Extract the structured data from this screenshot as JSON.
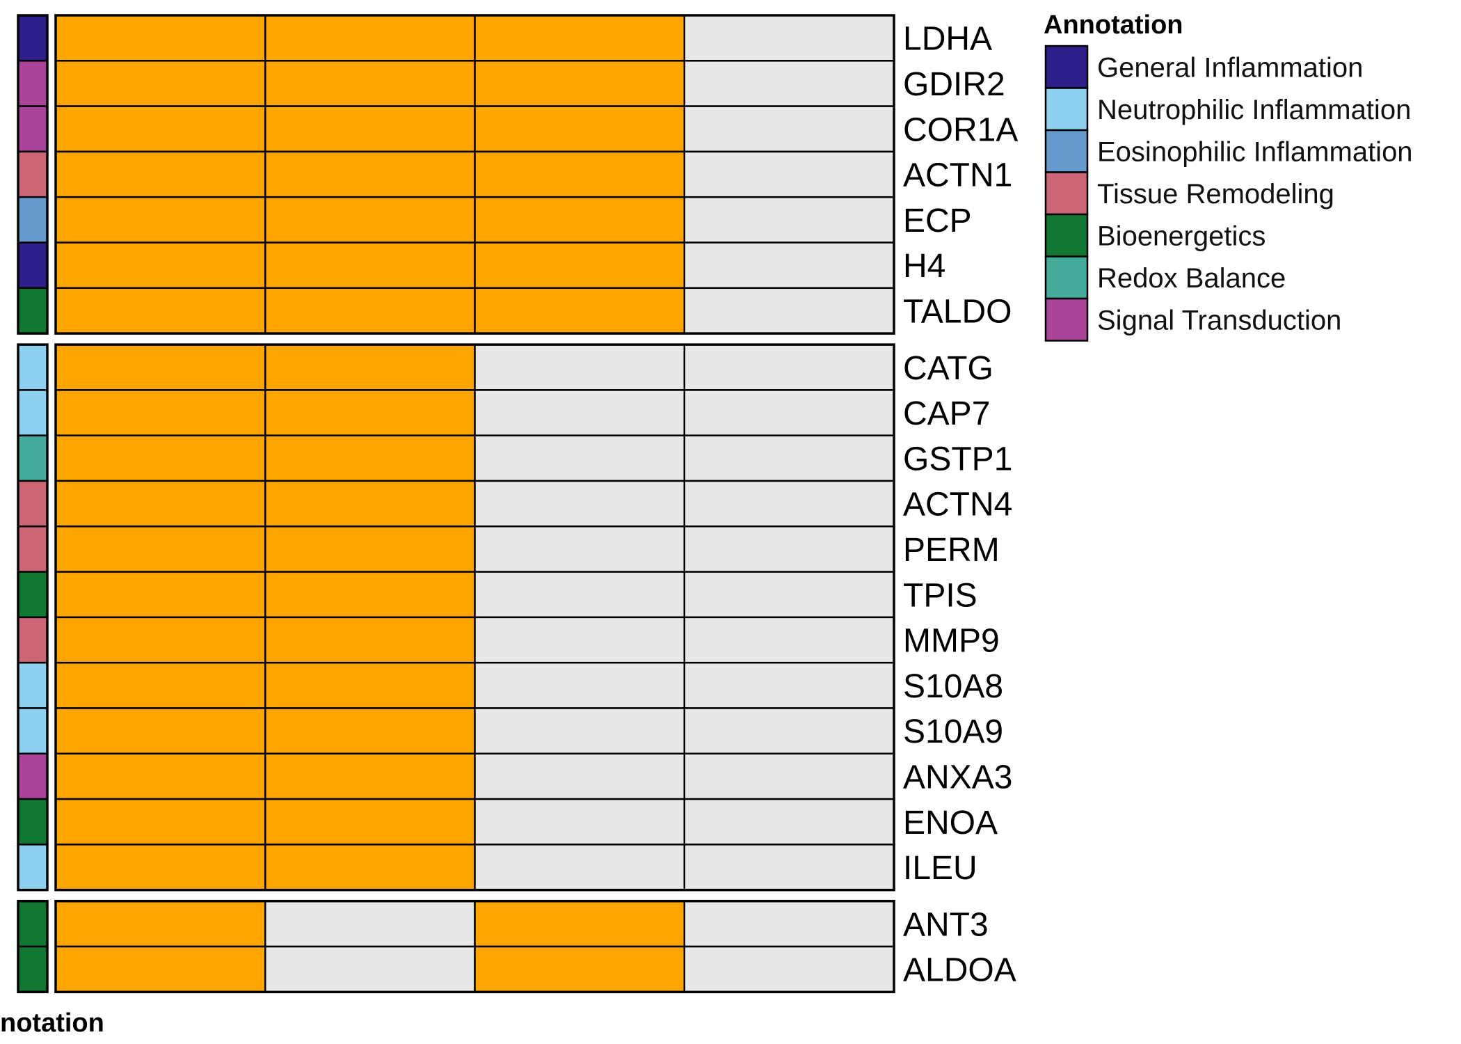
{
  "chart_data": {
    "type": "heatmap",
    "columns": 4,
    "colors": {
      "present": "#FFA500",
      "absent": "#E8E8E8",
      "border": "#000000"
    },
    "groups": [
      {
        "rows": [
          {
            "gene": "LDHA",
            "annotation": "General Inflammation",
            "values": [
              1,
              1,
              1,
              0
            ]
          },
          {
            "gene": "GDIR2",
            "annotation": "Signal Transduction",
            "values": [
              1,
              1,
              1,
              0
            ]
          },
          {
            "gene": "COR1A",
            "annotation": "Signal Transduction",
            "values": [
              1,
              1,
              1,
              0
            ]
          },
          {
            "gene": "ACTN1",
            "annotation": "Tissue Remodeling",
            "values": [
              1,
              1,
              1,
              0
            ]
          },
          {
            "gene": "ECP",
            "annotation": "Eosinophilic Inflammation",
            "values": [
              1,
              1,
              1,
              0
            ]
          },
          {
            "gene": "H4",
            "annotation": "General Inflammation",
            "values": [
              1,
              1,
              1,
              0
            ]
          },
          {
            "gene": "TALDO",
            "annotation": "Bioenergetics",
            "values": [
              1,
              1,
              1,
              0
            ]
          }
        ]
      },
      {
        "rows": [
          {
            "gene": "CATG",
            "annotation": "Neutrophilic Inflammation",
            "values": [
              1,
              1,
              0,
              0
            ]
          },
          {
            "gene": "CAP7",
            "annotation": "Neutrophilic Inflammation",
            "values": [
              1,
              1,
              0,
              0
            ]
          },
          {
            "gene": "GSTP1",
            "annotation": "Redox Balance",
            "values": [
              1,
              1,
              0,
              0
            ]
          },
          {
            "gene": "ACTN4",
            "annotation": "Tissue Remodeling",
            "values": [
              1,
              1,
              0,
              0
            ]
          },
          {
            "gene": "PERM",
            "annotation": "Tissue Remodeling",
            "values": [
              1,
              1,
              0,
              0
            ]
          },
          {
            "gene": "TPIS",
            "annotation": "Bioenergetics",
            "values": [
              1,
              1,
              0,
              0
            ]
          },
          {
            "gene": "MMP9",
            "annotation": "Tissue Remodeling",
            "values": [
              1,
              1,
              0,
              0
            ]
          },
          {
            "gene": "S10A8",
            "annotation": "Neutrophilic Inflammation",
            "values": [
              1,
              1,
              0,
              0
            ]
          },
          {
            "gene": "S10A9",
            "annotation": "Neutrophilic Inflammation",
            "values": [
              1,
              1,
              0,
              0
            ]
          },
          {
            "gene": "ANXA3",
            "annotation": "Signal Transduction",
            "values": [
              1,
              1,
              0,
              0
            ]
          },
          {
            "gene": "ENOA",
            "annotation": "Bioenergetics",
            "values": [
              1,
              1,
              0,
              0
            ]
          },
          {
            "gene": "ILEU",
            "annotation": "Neutrophilic Inflammation",
            "values": [
              1,
              1,
              0,
              0
            ]
          }
        ]
      },
      {
        "rows": [
          {
            "gene": "ANT3",
            "annotation": "Bioenergetics",
            "values": [
              1,
              0,
              1,
              0
            ]
          },
          {
            "gene": "ALDOA",
            "annotation": "Bioenergetics",
            "values": [
              1,
              0,
              1,
              0
            ]
          }
        ]
      }
    ],
    "legend": {
      "title": "Annotation",
      "placement": "top-right",
      "entries": [
        {
          "label": "General Inflammation",
          "color": "#2E1F8A"
        },
        {
          "label": "Neutrophilic Inflammation",
          "color": "#8ED0F0"
        },
        {
          "label": "Eosinophilic Inflammation",
          "color": "#6699CC"
        },
        {
          "label": "Tissue Remodeling",
          "color": "#CC6677"
        },
        {
          "label": "Bioenergetics",
          "color": "#117733"
        },
        {
          "label": "Redox Balance",
          "color": "#44AA99"
        },
        {
          "label": "Signal Transduction",
          "color": "#AA4499"
        }
      ]
    },
    "annotation_axis_label": "notation"
  }
}
